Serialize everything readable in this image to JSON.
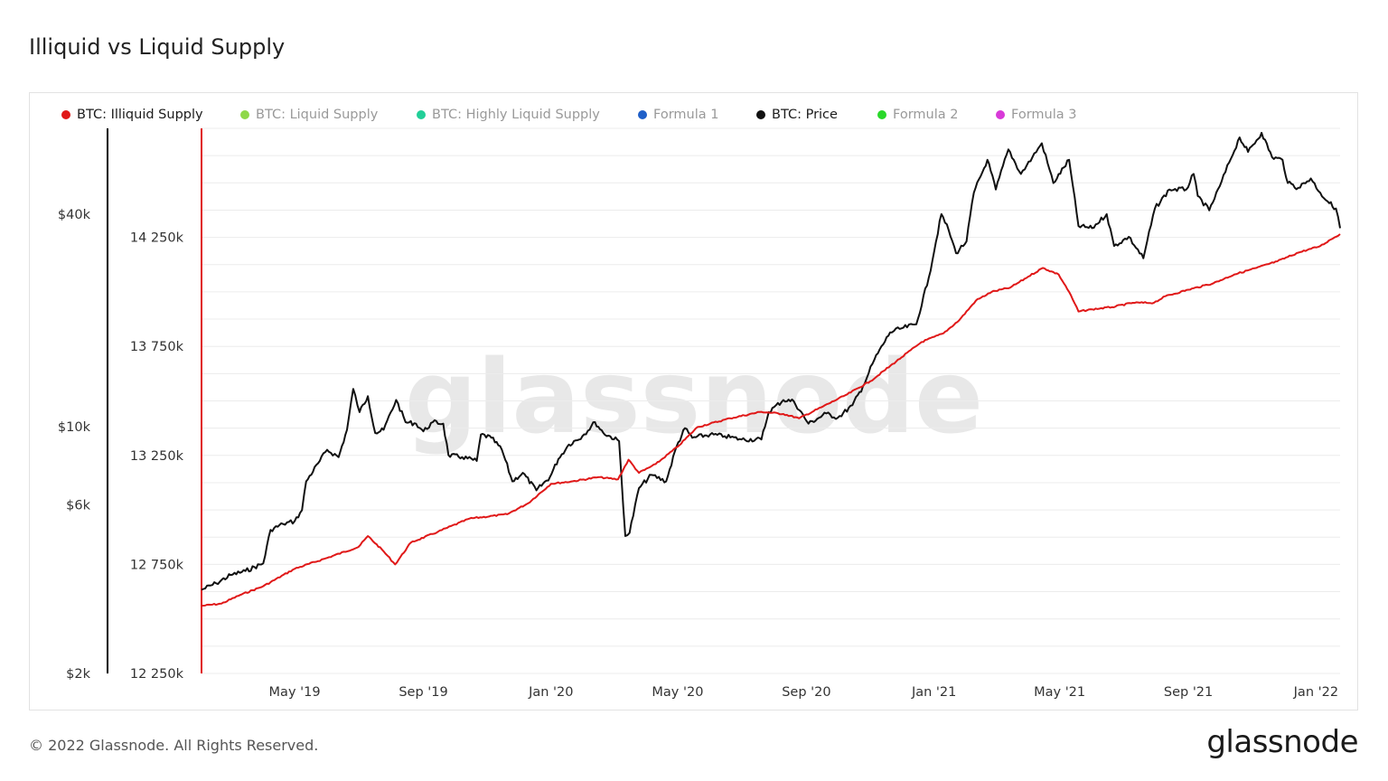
{
  "title": "Illiquid vs Liquid Supply",
  "footer": "© 2022 Glassnode. All Rights Reserved.",
  "brand": "glassnode",
  "watermark": "glassnode",
  "legend": [
    {
      "label": "BTC: Illiquid Supply",
      "color": "#e01818",
      "active": true
    },
    {
      "label": "BTC: Liquid Supply",
      "color": "#8fd84a",
      "active": false
    },
    {
      "label": "BTC: Highly Liquid Supply",
      "color": "#22cf98",
      "active": false
    },
    {
      "label": "Formula 1",
      "color": "#1f5fc8",
      "active": false
    },
    {
      "label": "BTC: Price",
      "color": "#111111",
      "active": true
    },
    {
      "label": "Formula 2",
      "color": "#2ad82a",
      "active": false
    },
    {
      "label": "Formula 3",
      "color": "#d83ad8",
      "active": false
    }
  ],
  "chart_data": {
    "type": "line",
    "title": "Illiquid vs Liquid Supply",
    "x_range": [
      "2019-02-01",
      "2022-01-24"
    ],
    "x_ticks": [
      "May '19",
      "Sep '19",
      "Jan '20",
      "May '20",
      "Sep '20",
      "Jan '21",
      "May '21",
      "Sep '21",
      "Jan '22"
    ],
    "y_left": {
      "scale": "log",
      "range": [
        2000,
        70000
      ],
      "ticks": [
        "$2k",
        "$6k",
        "$10k",
        "$40k"
      ],
      "tick_values": [
        2000,
        6000,
        10000,
        40000
      ]
    },
    "y_right": {
      "scale": "linear",
      "range": [
        12250000,
        14750000
      ],
      "ticks": [
        "12 250k",
        "12 750k",
        "13 250k",
        "13 750k",
        "14 250k"
      ],
      "tick_values": [
        12250000,
        12750000,
        13250000,
        13750000,
        14250000
      ]
    },
    "series": [
      {
        "name": "BTC: Price",
        "axis": "left",
        "color": "#111111",
        "points": [
          [
            "2019-02-01",
            3450
          ],
          [
            "2019-02-15",
            3600
          ],
          [
            "2019-03-01",
            3800
          ],
          [
            "2019-03-15",
            3900
          ],
          [
            "2019-04-01",
            4100
          ],
          [
            "2019-04-08",
            5100
          ],
          [
            "2019-04-20",
            5300
          ],
          [
            "2019-05-01",
            5400
          ],
          [
            "2019-05-08",
            5800
          ],
          [
            "2019-05-12",
            7000
          ],
          [
            "2019-05-25",
            8000
          ],
          [
            "2019-06-01",
            8600
          ],
          [
            "2019-06-12",
            8200
          ],
          [
            "2019-06-20",
            9800
          ],
          [
            "2019-06-26",
            12800
          ],
          [
            "2019-07-02",
            11000
          ],
          [
            "2019-07-10",
            12200
          ],
          [
            "2019-07-17",
            9600
          ],
          [
            "2019-07-25",
            9800
          ],
          [
            "2019-08-06",
            11900
          ],
          [
            "2019-08-15",
            10300
          ],
          [
            "2019-08-25",
            10200
          ],
          [
            "2019-09-01",
            9700
          ],
          [
            "2019-09-10",
            10300
          ],
          [
            "2019-09-20",
            10200
          ],
          [
            "2019-09-25",
            8300
          ],
          [
            "2019-10-08",
            8200
          ],
          [
            "2019-10-22",
            8000
          ],
          [
            "2019-10-26",
            9500
          ],
          [
            "2019-11-05",
            9300
          ],
          [
            "2019-11-15",
            8600
          ],
          [
            "2019-11-25",
            7000
          ],
          [
            "2019-12-05",
            7400
          ],
          [
            "2019-12-18",
            6600
          ],
          [
            "2019-12-31",
            7200
          ],
          [
            "2020-01-08",
            8100
          ],
          [
            "2020-01-18",
            8900
          ],
          [
            "2020-01-31",
            9400
          ],
          [
            "2020-02-12",
            10300
          ],
          [
            "2020-02-20",
            9600
          ],
          [
            "2020-03-06",
            9100
          ],
          [
            "2020-03-12",
            4900
          ],
          [
            "2020-03-16",
            5000
          ],
          [
            "2020-03-25",
            6700
          ],
          [
            "2020-04-06",
            7300
          ],
          [
            "2020-04-20",
            7000
          ],
          [
            "2020-04-30",
            8800
          ],
          [
            "2020-05-08",
            9900
          ],
          [
            "2020-05-15",
            9300
          ],
          [
            "2020-06-01",
            9500
          ],
          [
            "2020-06-15",
            9400
          ],
          [
            "2020-07-01",
            9200
          ],
          [
            "2020-07-20",
            9200
          ],
          [
            "2020-07-27",
            11000
          ],
          [
            "2020-08-10",
            11900
          ],
          [
            "2020-08-20",
            11800
          ],
          [
            "2020-09-03",
            10200
          ],
          [
            "2020-09-20",
            10900
          ],
          [
            "2020-10-01",
            10600
          ],
          [
            "2020-10-15",
            11500
          ],
          [
            "2020-10-25",
            13000
          ],
          [
            "2020-11-05",
            15500
          ],
          [
            "2020-11-20",
            18500
          ],
          [
            "2020-12-01",
            19000
          ],
          [
            "2020-12-15",
            19500
          ],
          [
            "2020-12-27",
            26500
          ],
          [
            "2021-01-08",
            40000
          ],
          [
            "2021-01-15",
            36000
          ],
          [
            "2021-01-22",
            31000
          ],
          [
            "2021-02-01",
            33500
          ],
          [
            "2021-02-08",
            46000
          ],
          [
            "2021-02-21",
            57000
          ],
          [
            "2021-03-01",
            47000
          ],
          [
            "2021-03-13",
            61000
          ],
          [
            "2021-03-25",
            52000
          ],
          [
            "2021-04-05",
            58000
          ],
          [
            "2021-04-14",
            63500
          ],
          [
            "2021-04-25",
            49000
          ],
          [
            "2021-05-10",
            57000
          ],
          [
            "2021-05-19",
            37000
          ],
          [
            "2021-06-01",
            36500
          ],
          [
            "2021-06-15",
            40000
          ],
          [
            "2021-06-22",
            32500
          ],
          [
            "2021-07-06",
            34500
          ],
          [
            "2021-07-20",
            30000
          ],
          [
            "2021-07-31",
            41500
          ],
          [
            "2021-08-14",
            47000
          ],
          [
            "2021-08-30",
            47000
          ],
          [
            "2021-09-06",
            52000
          ],
          [
            "2021-09-10",
            45000
          ],
          [
            "2021-09-21",
            41000
          ],
          [
            "2021-10-01",
            48000
          ],
          [
            "2021-10-10",
            56000
          ],
          [
            "2021-10-20",
            66000
          ],
          [
            "2021-10-28",
            60000
          ],
          [
            "2021-11-10",
            68000
          ],
          [
            "2021-11-20",
            58000
          ],
          [
            "2021-11-30",
            57000
          ],
          [
            "2021-12-05",
            49000
          ],
          [
            "2021-12-15",
            47500
          ],
          [
            "2021-12-27",
            50500
          ],
          [
            "2022-01-05",
            46000
          ],
          [
            "2022-01-12",
            43500
          ],
          [
            "2022-01-20",
            41500
          ],
          [
            "2022-01-24",
            36500
          ]
        ]
      },
      {
        "name": "BTC: Illiquid Supply",
        "axis": "right",
        "color": "#e01818",
        "points": [
          [
            "2019-02-01",
            12560000
          ],
          [
            "2019-02-20",
            12570000
          ],
          [
            "2019-03-10",
            12610000
          ],
          [
            "2019-04-01",
            12650000
          ],
          [
            "2019-05-01",
            12730000
          ],
          [
            "2019-06-01",
            12780000
          ],
          [
            "2019-07-01",
            12830000
          ],
          [
            "2019-07-10",
            12880000
          ],
          [
            "2019-07-25",
            12810000
          ],
          [
            "2019-08-05",
            12750000
          ],
          [
            "2019-08-20",
            12850000
          ],
          [
            "2019-09-15",
            12900000
          ],
          [
            "2019-10-15",
            12960000
          ],
          [
            "2019-11-20",
            12980000
          ],
          [
            "2019-12-10",
            13030000
          ],
          [
            "2020-01-01",
            13120000
          ],
          [
            "2020-01-20",
            13130000
          ],
          [
            "2020-02-15",
            13150000
          ],
          [
            "2020-03-05",
            13140000
          ],
          [
            "2020-03-15",
            13230000
          ],
          [
            "2020-03-25",
            13170000
          ],
          [
            "2020-04-10",
            13210000
          ],
          [
            "2020-05-01",
            13290000
          ],
          [
            "2020-05-20",
            13380000
          ],
          [
            "2020-06-20",
            13420000
          ],
          [
            "2020-07-20",
            13450000
          ],
          [
            "2020-08-10",
            13440000
          ],
          [
            "2020-08-25",
            13420000
          ],
          [
            "2020-09-15",
            13470000
          ],
          [
            "2020-10-10",
            13530000
          ],
          [
            "2020-11-01",
            13590000
          ],
          [
            "2020-12-01",
            13700000
          ],
          [
            "2020-12-20",
            13770000
          ],
          [
            "2021-01-10",
            13810000
          ],
          [
            "2021-01-25",
            13870000
          ],
          [
            "2021-02-10",
            13960000
          ],
          [
            "2021-02-25",
            14000000
          ],
          [
            "2021-03-15",
            14020000
          ],
          [
            "2021-04-01",
            14070000
          ],
          [
            "2021-04-15",
            14110000
          ],
          [
            "2021-04-30",
            14080000
          ],
          [
            "2021-05-10",
            14000000
          ],
          [
            "2021-05-19",
            13910000
          ],
          [
            "2021-06-01",
            13920000
          ],
          [
            "2021-06-20",
            13930000
          ],
          [
            "2021-07-10",
            13950000
          ],
          [
            "2021-07-30",
            13950000
          ],
          [
            "2021-08-10",
            13980000
          ],
          [
            "2021-09-01",
            14010000
          ],
          [
            "2021-09-25",
            14040000
          ],
          [
            "2021-10-15",
            14080000
          ],
          [
            "2021-11-05",
            14110000
          ],
          [
            "2021-11-25",
            14140000
          ],
          [
            "2021-12-15",
            14180000
          ],
          [
            "2022-01-05",
            14210000
          ],
          [
            "2022-01-15",
            14240000
          ],
          [
            "2022-01-24",
            14265000
          ]
        ]
      }
    ]
  }
}
